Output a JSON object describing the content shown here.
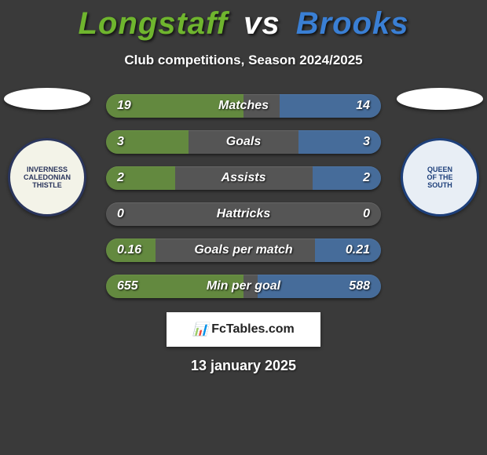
{
  "players": {
    "p1": {
      "name": "Longstaff",
      "color": "#6fb52e"
    },
    "p2": {
      "name": "Brooks",
      "color": "#3a7fd4"
    }
  },
  "vs_label": "vs",
  "subtitle": "Club competitions, Season 2024/2025",
  "crest_left": {
    "bg": "#f3f3e8",
    "text_color": "#2a355c",
    "label": "INVERNESS\nCALEDONIAN\nTHISTLE"
  },
  "crest_right": {
    "bg": "#e8eef5",
    "text_color": "#1d3f7a",
    "label": "QUEEN\nOF THE\nSOUTH"
  },
  "stats": [
    {
      "label": "Matches",
      "v1": "19",
      "v2": "14",
      "w1": 50,
      "w2": 37
    },
    {
      "label": "Goals",
      "v1": "3",
      "v2": "3",
      "w1": 30,
      "w2": 30
    },
    {
      "label": "Assists",
      "v1": "2",
      "v2": "2",
      "w1": 25,
      "w2": 25
    },
    {
      "label": "Hattricks",
      "v1": "0",
      "v2": "0",
      "w1": 0,
      "w2": 0
    },
    {
      "label": "Goals per match",
      "v1": "0.16",
      "v2": "0.21",
      "w1": 18,
      "w2": 24
    },
    {
      "label": "Min per goal",
      "v1": "655",
      "v2": "588",
      "w1": 50,
      "w2": 45
    }
  ],
  "watermark": "FcTables.com",
  "date": "13 january 2025",
  "bar_bg": "#555555"
}
